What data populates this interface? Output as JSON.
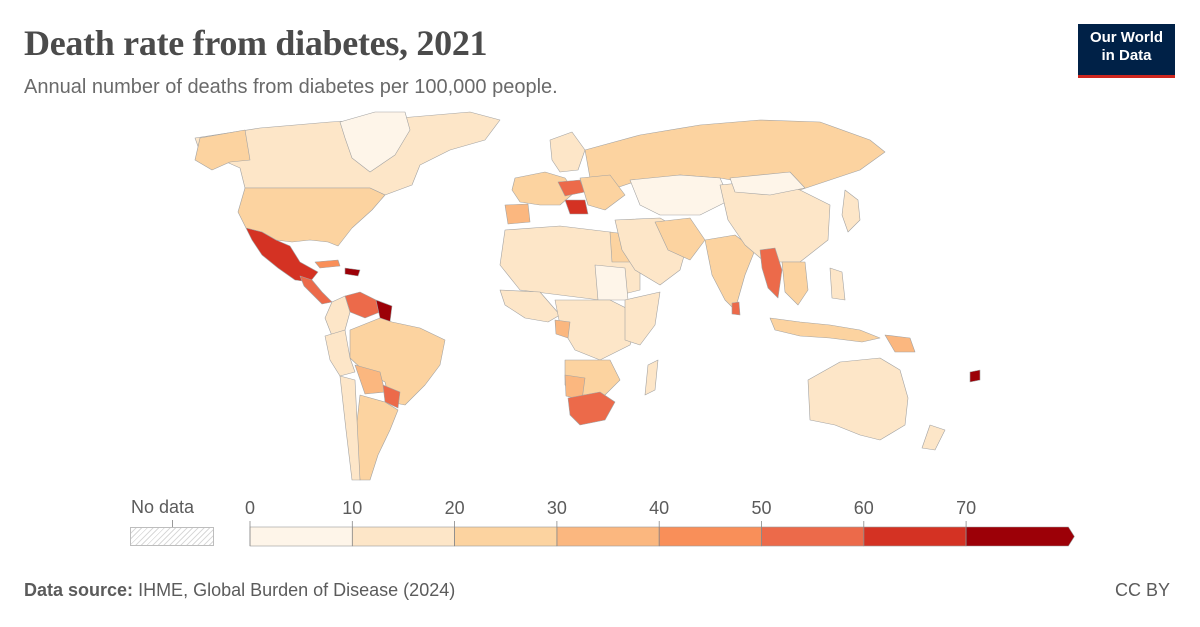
{
  "header": {
    "title": "Death rate from diabetes, 2021",
    "subtitle": "Annual number of deaths from diabetes per 100,000 people."
  },
  "logo": {
    "line1": "Our World",
    "line2": "in Data",
    "bg_color": "#002147",
    "accent_color": "#ce261e"
  },
  "legend": {
    "nodata_label": "No data",
    "bins": [
      {
        "min": 0,
        "max": 10,
        "color": "#fef5e9"
      },
      {
        "min": 10,
        "max": 20,
        "color": "#fde6c8"
      },
      {
        "min": 20,
        "max": 30,
        "color": "#fcd3a0"
      },
      {
        "min": 30,
        "max": 40,
        "color": "#fbb77f"
      },
      {
        "min": 40,
        "max": 50,
        "color": "#f98f59"
      },
      {
        "min": 50,
        "max": 60,
        "color": "#ec6a4a"
      },
      {
        "min": 60,
        "max": 70,
        "color": "#d43223"
      },
      {
        "min": 70,
        "max": null,
        "color": "#9c0007"
      }
    ],
    "tick_labels": [
      "0",
      "10",
      "20",
      "30",
      "40",
      "50",
      "60",
      "70"
    ]
  },
  "footer": {
    "source_label": "Data source:",
    "source_text": "IHME, Global Burden of Disease (2024)",
    "license": "CC BY"
  },
  "map_colors": {
    "ocean": "#ffffff",
    "border": "#a0a0a0"
  }
}
